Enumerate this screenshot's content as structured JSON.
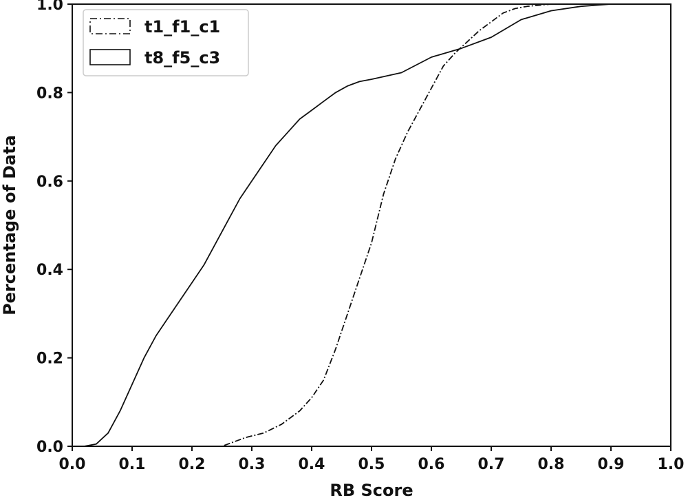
{
  "chart_data": {
    "type": "line",
    "xlabel": "RB Score",
    "ylabel": "Percentage of Data",
    "xlim": [
      0.0,
      1.0
    ],
    "ylim": [
      0.0,
      1.0
    ],
    "xticks": [
      "0.0",
      "0.1",
      "0.2",
      "0.3",
      "0.4",
      "0.5",
      "0.6",
      "0.7",
      "0.8",
      "0.9",
      "1.0"
    ],
    "yticks": [
      "0.0",
      "0.2",
      "0.4",
      "0.6",
      "0.8",
      "1.0"
    ],
    "grid": false,
    "legend_position": "top-left",
    "series": [
      {
        "name": "t1_f1_c1",
        "style": "dashdot",
        "color": "#111111",
        "x": [
          0.0,
          0.25,
          0.27,
          0.29,
          0.32,
          0.35,
          0.38,
          0.4,
          0.42,
          0.44,
          0.46,
          0.48,
          0.5,
          0.52,
          0.54,
          0.56,
          0.58,
          0.6,
          0.62,
          0.64,
          0.66,
          0.68,
          0.7,
          0.72,
          0.74,
          0.76,
          0.8,
          0.85,
          0.9,
          1.0
        ],
        "y": [
          0.0,
          0.0,
          0.01,
          0.02,
          0.03,
          0.05,
          0.08,
          0.11,
          0.15,
          0.22,
          0.3,
          0.38,
          0.46,
          0.57,
          0.65,
          0.71,
          0.76,
          0.81,
          0.86,
          0.89,
          0.915,
          0.94,
          0.96,
          0.98,
          0.99,
          0.995,
          1.0,
          1.0,
          1.0,
          1.0
        ]
      },
      {
        "name": "t8_f5_c3",
        "style": "solid",
        "color": "#111111",
        "x": [
          0.0,
          0.02,
          0.04,
          0.06,
          0.08,
          0.1,
          0.12,
          0.14,
          0.16,
          0.18,
          0.2,
          0.22,
          0.24,
          0.26,
          0.28,
          0.3,
          0.32,
          0.34,
          0.36,
          0.38,
          0.4,
          0.42,
          0.44,
          0.46,
          0.48,
          0.5,
          0.55,
          0.6,
          0.65,
          0.7,
          0.75,
          0.8,
          0.85,
          0.9,
          1.0
        ],
        "y": [
          0.0,
          0.0,
          0.005,
          0.03,
          0.08,
          0.14,
          0.2,
          0.25,
          0.29,
          0.33,
          0.37,
          0.41,
          0.46,
          0.51,
          0.56,
          0.6,
          0.64,
          0.68,
          0.71,
          0.74,
          0.76,
          0.78,
          0.8,
          0.815,
          0.825,
          0.83,
          0.845,
          0.88,
          0.9,
          0.925,
          0.965,
          0.985,
          0.995,
          1.0,
          1.0
        ]
      }
    ]
  }
}
